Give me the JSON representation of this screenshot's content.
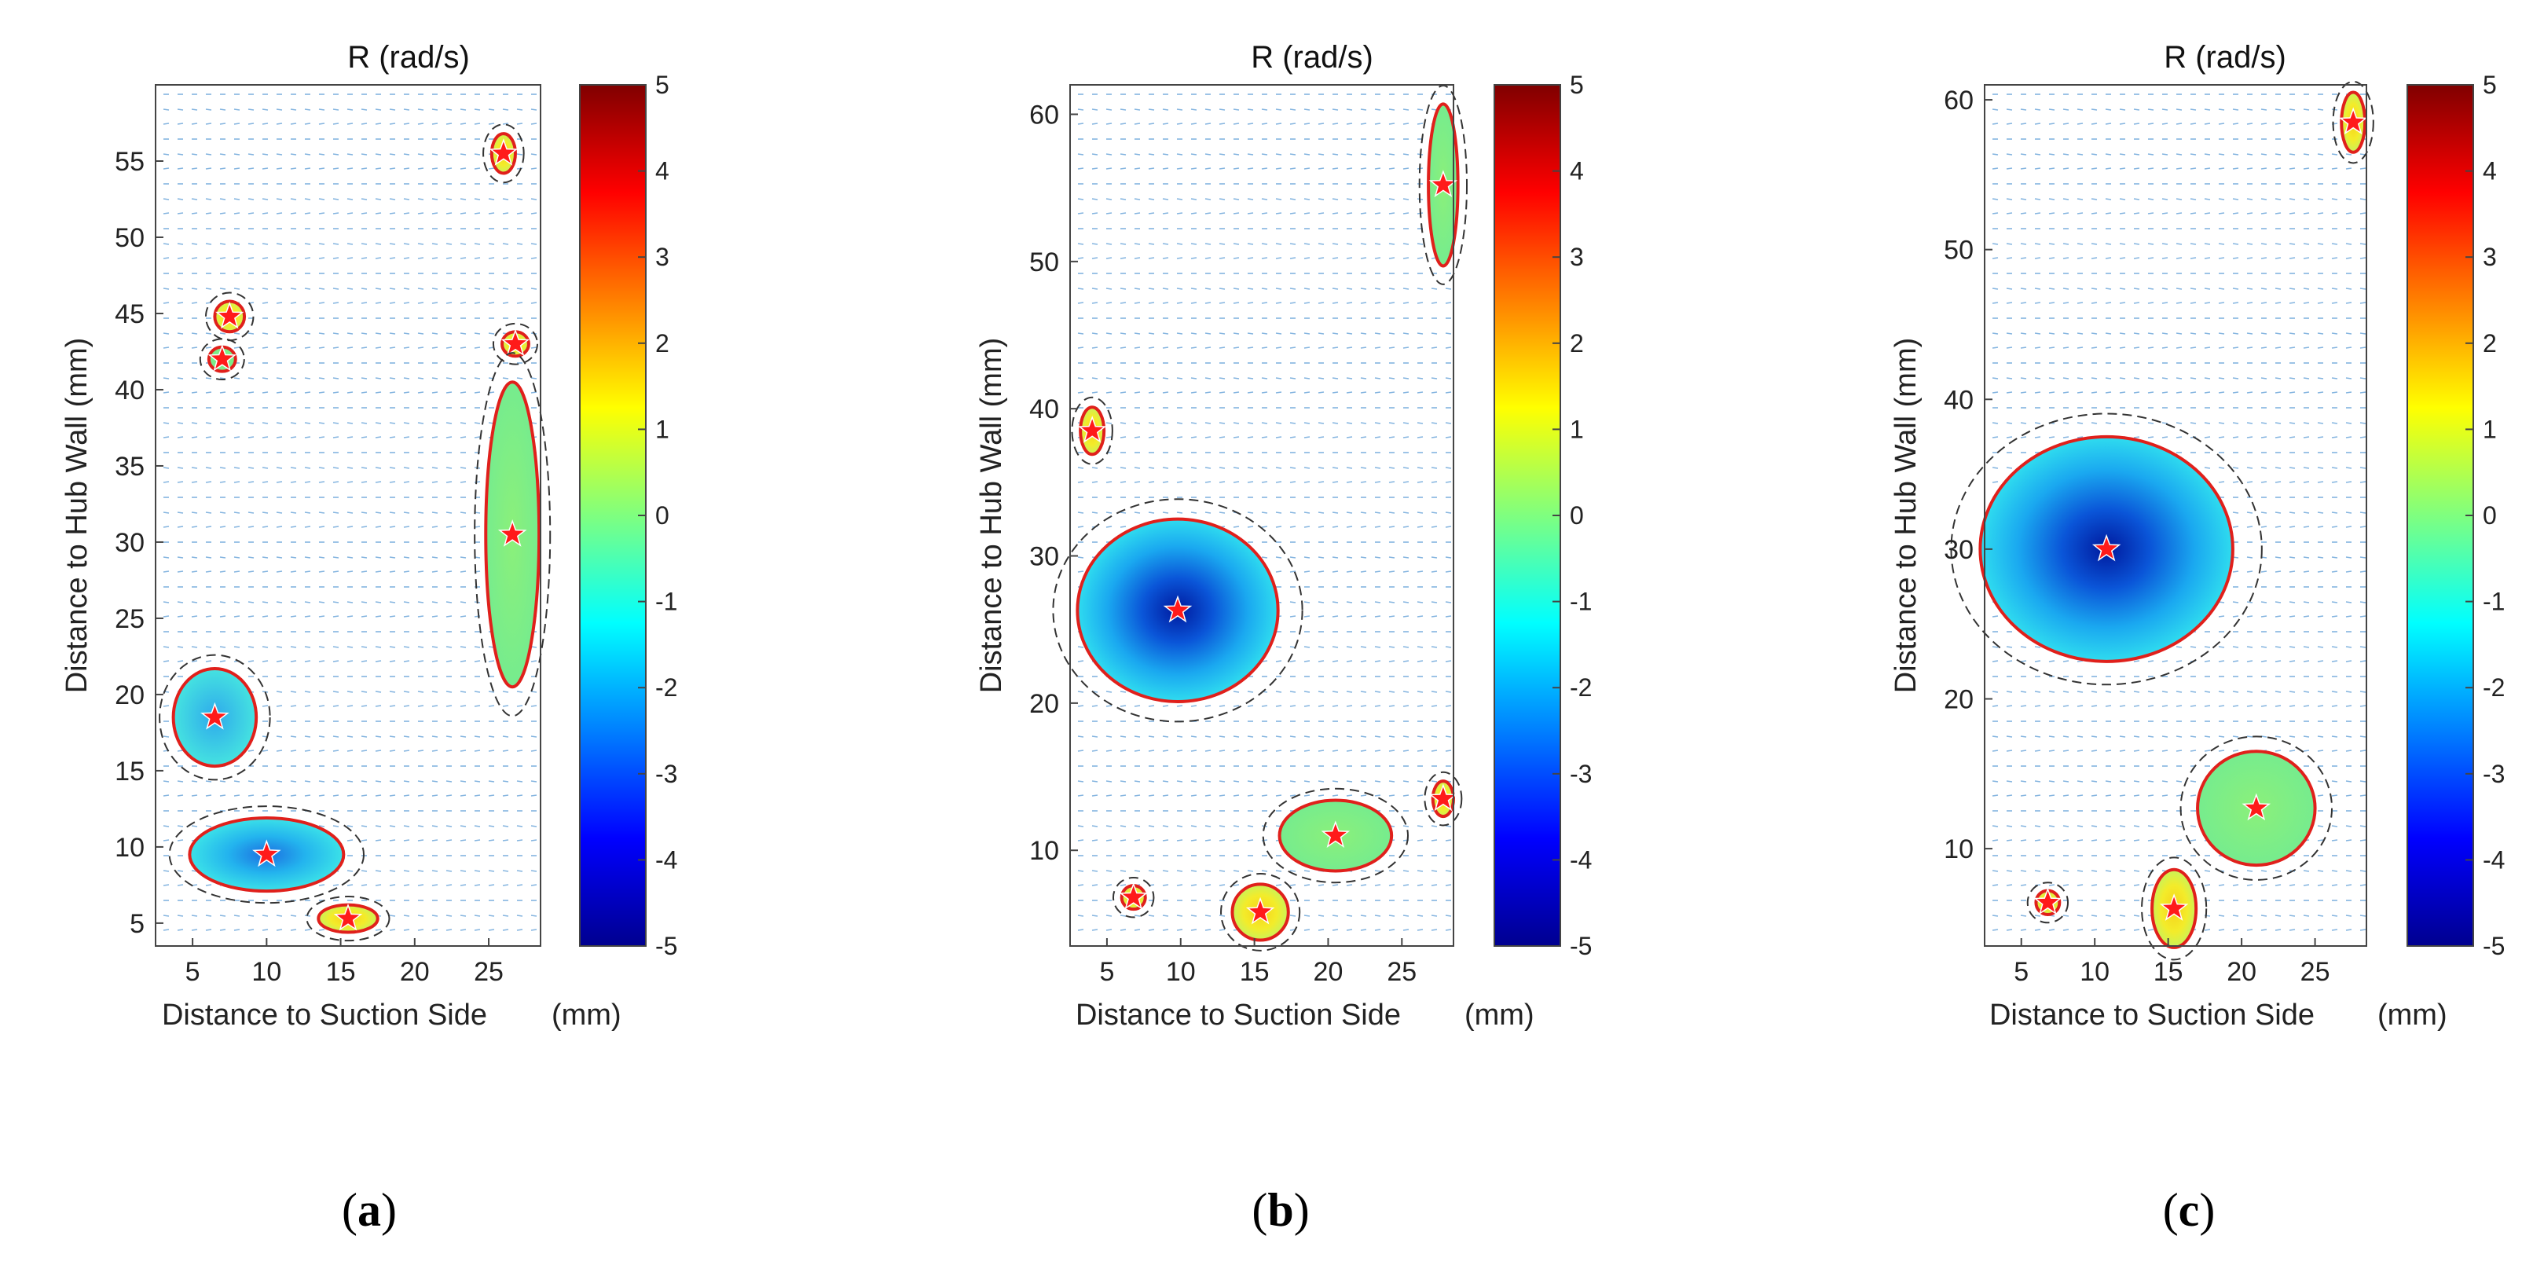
{
  "chart_data": [
    {
      "type": "heatmap",
      "panel_label": "a",
      "title": "R (rad/s)",
      "xlabel": "Distance to Suction Side",
      "xlabel_units": "(mm)",
      "ylabel": "Distance to Hub Wall (mm)",
      "xlim": [
        2.5,
        28.5
      ],
      "ylim": [
        3.5,
        60
      ],
      "xticks": [
        5,
        10,
        15,
        20,
        25
      ],
      "yticks": [
        5,
        10,
        15,
        20,
        25,
        30,
        35,
        40,
        45,
        50,
        55
      ],
      "colorbar": {
        "range": [
          -5,
          5
        ],
        "ticks": [
          5,
          4,
          3,
          2,
          1,
          0,
          -1,
          -2,
          -3,
          -4,
          -5
        ]
      },
      "vortex_regions": [
        {
          "center": [
            26.0,
            55.5
          ],
          "peak": 1.0,
          "rx": 0.8,
          "ry": 1.3
        },
        {
          "center": [
            7.5,
            44.8
          ],
          "peak": 1.0,
          "rx": 1.0,
          "ry": 1.0
        },
        {
          "center": [
            7.0,
            42.0
          ],
          "peak": 0.5,
          "rx": 0.9,
          "ry": 0.8
        },
        {
          "center": [
            26.8,
            43.0
          ],
          "peak": 1.0,
          "rx": 0.9,
          "ry": 0.8
        },
        {
          "center": [
            26.6,
            30.5
          ],
          "peak": 0.2,
          "rx": 1.8,
          "ry": 10.0
        },
        {
          "center": [
            6.5,
            18.5
          ],
          "peak": -1.5,
          "rx": 2.8,
          "ry": 3.2
        },
        {
          "center": [
            10.0,
            9.5
          ],
          "peak": -2.0,
          "rx": 5.2,
          "ry": 2.4
        },
        {
          "center": [
            15.5,
            5.3
          ],
          "peak": 1.6,
          "rx": 2.0,
          "ry": 0.9
        }
      ]
    },
    {
      "type": "heatmap",
      "panel_label": "b",
      "title": "R (rad/s)",
      "xlabel": "Distance to Suction Side",
      "xlabel_units": "(mm)",
      "ylabel": "Distance to Hub Wall (mm)",
      "xlim": [
        2.5,
        28.5
      ],
      "ylim": [
        3.5,
        62
      ],
      "xticks": [
        5,
        10,
        15,
        20,
        25
      ],
      "yticks": [
        10,
        20,
        30,
        40,
        50,
        60
      ],
      "colorbar": {
        "range": [
          -5,
          5
        ],
        "ticks": [
          5,
          4,
          3,
          2,
          1,
          0,
          -1,
          -2,
          -3,
          -4,
          -5
        ]
      },
      "vortex_regions": [
        {
          "center": [
            27.8,
            55.2
          ],
          "peak": 0.5,
          "rx": 1.0,
          "ry": 5.5
        },
        {
          "center": [
            4.0,
            38.5
          ],
          "peak": 1.0,
          "rx": 0.8,
          "ry": 1.6
        },
        {
          "center": [
            9.8,
            26.3
          ],
          "peak": -4.5,
          "rx": 6.8,
          "ry": 6.2
        },
        {
          "center": [
            6.8,
            6.8
          ],
          "peak": 1.0,
          "rx": 0.8,
          "ry": 0.8
        },
        {
          "center": [
            15.4,
            5.8
          ],
          "peak": 1.4,
          "rx": 1.9,
          "ry": 1.9
        },
        {
          "center": [
            20.5,
            11.0
          ],
          "peak": 0.3,
          "rx": 3.8,
          "ry": 2.4
        },
        {
          "center": [
            27.8,
            13.5
          ],
          "peak": 1.0,
          "rx": 0.7,
          "ry": 1.2
        }
      ]
    },
    {
      "type": "heatmap",
      "panel_label": "c",
      "title": "R (rad/s)",
      "xlabel": "Distance to Suction Side",
      "xlabel_units": "(mm)",
      "ylabel": "Distance to Hub Wall (mm)",
      "xlim": [
        2.5,
        28.5
      ],
      "ylim": [
        3.5,
        61
      ],
      "xticks": [
        5,
        10,
        15,
        20,
        25
      ],
      "yticks": [
        10,
        20,
        30,
        40,
        50,
        60
      ],
      "colorbar": {
        "range": [
          -5,
          5
        ],
        "ticks": [
          5,
          4,
          3,
          2,
          1,
          0,
          -1,
          -2,
          -3,
          -4,
          -5
        ]
      },
      "vortex_regions": [
        {
          "center": [
            27.6,
            58.5
          ],
          "peak": 1.0,
          "rx": 0.8,
          "ry": 2.0
        },
        {
          "center": [
            10.8,
            30.0
          ],
          "peak": -3.3,
          "rx": 8.6,
          "ry": 7.5
        },
        {
          "center": [
            6.8,
            6.4
          ],
          "peak": 1.0,
          "rx": 0.8,
          "ry": 0.8
        },
        {
          "center": [
            15.4,
            6.0
          ],
          "peak": 1.2,
          "rx": 1.5,
          "ry": 2.6
        },
        {
          "center": [
            21.0,
            12.7
          ],
          "peak": 0.3,
          "rx": 4.0,
          "ry": 3.8
        }
      ]
    }
  ]
}
